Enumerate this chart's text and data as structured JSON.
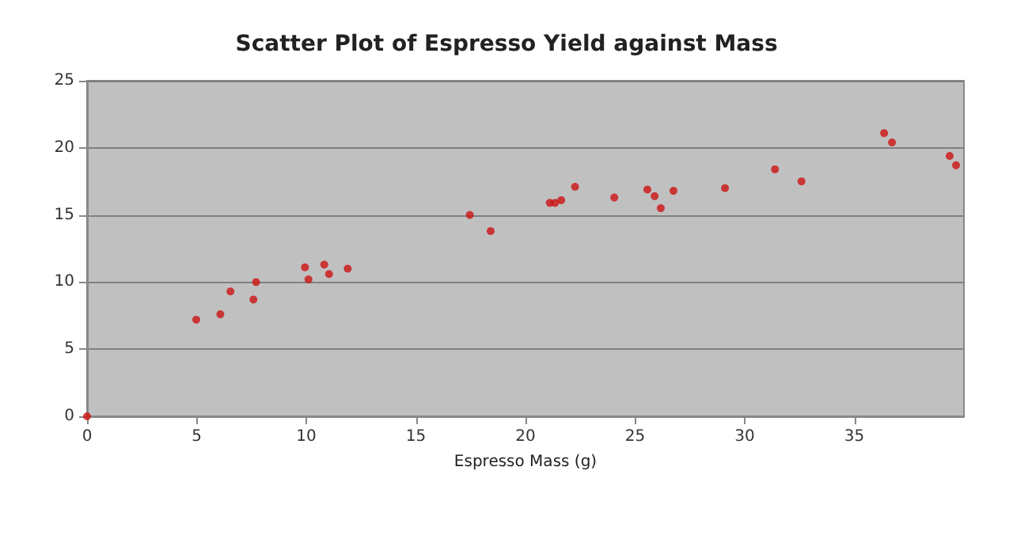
{
  "chart_data": {
    "type": "scatter",
    "title": "Scatter Plot of Espresso Yield against Mass",
    "xlabel": "Espresso Mass (g)",
    "x": [
      0,
      4.98,
      6.08,
      6.54,
      7.59,
      7.71,
      9.94,
      10.1,
      10.82,
      11.04,
      11.89,
      17.46,
      18.41,
      21.11,
      21.35,
      21.63,
      22.26,
      24.05,
      25.56,
      25.89,
      26.17,
      26.75,
      29.1,
      31.38,
      32.59,
      36.36,
      36.72,
      39.35,
      39.64
    ],
    "values": [
      0,
      7.2,
      7.6,
      9.3,
      8.7,
      10,
      11.1,
      10.2,
      11.3,
      10.6,
      11,
      15,
      13.8,
      15.9,
      15.9,
      16.1,
      17.1,
      16.3,
      16.9,
      16.4,
      15.5,
      16.8,
      17,
      18.4,
      17.5,
      21.1,
      20.4,
      19.4,
      18.7
    ],
    "color": "#cc1111",
    "marker": "circle",
    "xlim": [
      0,
      40
    ],
    "xticks": [
      0,
      5,
      10,
      15,
      20,
      25,
      30,
      35
    ],
    "ylim": [
      0,
      25
    ],
    "yticks": [
      0,
      5,
      10,
      15,
      20,
      25
    ],
    "grid": "y"
  }
}
